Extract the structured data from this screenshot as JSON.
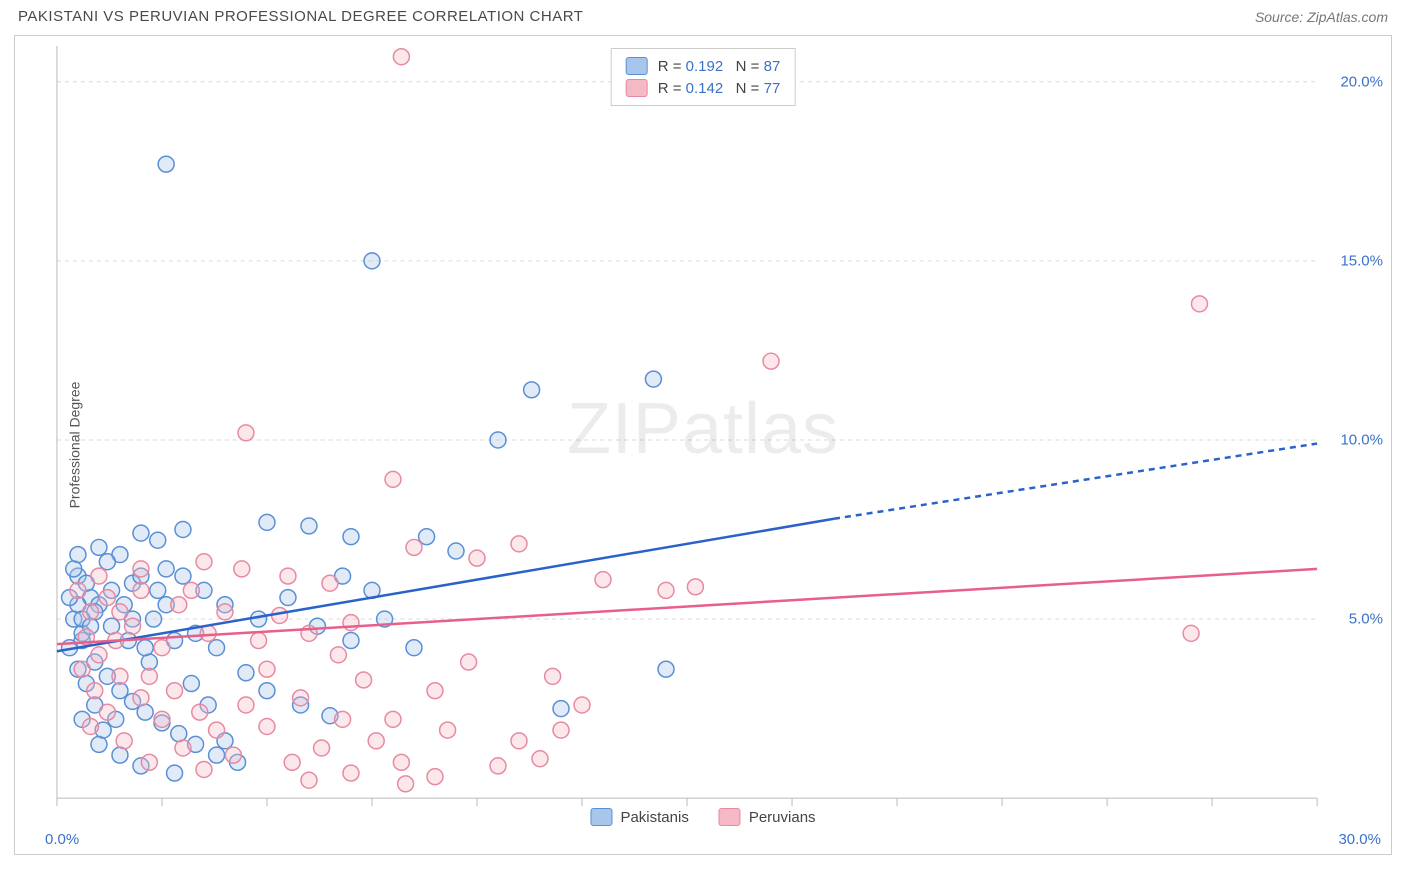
{
  "title": "PAKISTANI VS PERUVIAN PROFESSIONAL DEGREE CORRELATION CHART",
  "source": "Source: ZipAtlas.com",
  "ylabel": "Professional Degree",
  "watermark_a": "ZIP",
  "watermark_b": "atlas",
  "chart": {
    "type": "scatter",
    "background_color": "#ffffff",
    "border_color": "#cccccc",
    "grid_color": "#d9d9d9",
    "grid_dash": "4 4",
    "xlim": [
      0,
      30
    ],
    "ylim": [
      0,
      21
    ],
    "xtick_minor_step": 2.5,
    "ytick_values": [
      5,
      10,
      15,
      20
    ],
    "ytick_labels": [
      "5.0%",
      "10.0%",
      "15.0%",
      "20.0%"
    ],
    "x_origin_label": "0.0%",
    "x_max_label": "30.0%",
    "marker_radius": 8,
    "marker_stroke_width": 1.5,
    "marker_fill_opacity": 0.35,
    "trend_line_width": 2.5
  },
  "series": [
    {
      "name": "Pakistanis",
      "color_fill": "#a8c6ec",
      "color_stroke": "#5a8fd6",
      "line_color": "#2a62c9",
      "R": "0.192",
      "N": "87",
      "trend": {
        "x1": 0,
        "y1": 4.1,
        "x2": 18.5,
        "y2": 7.8,
        "x2_dash": 30,
        "y2_dash": 9.9
      },
      "points": [
        [
          2.6,
          17.7
        ],
        [
          7.5,
          15.0
        ],
        [
          11.3,
          11.4
        ],
        [
          14.2,
          11.7
        ],
        [
          10.5,
          10.0
        ],
        [
          5.0,
          7.7
        ],
        [
          6.0,
          7.6
        ],
        [
          7.0,
          7.3
        ],
        [
          8.8,
          7.3
        ],
        [
          9.5,
          6.9
        ],
        [
          3.0,
          7.5
        ],
        [
          2.0,
          7.4
        ],
        [
          1.5,
          6.8
        ],
        [
          1.8,
          6.0
        ],
        [
          0.5,
          6.2
        ],
        [
          0.8,
          5.6
        ],
        [
          1.0,
          5.4
        ],
        [
          1.3,
          5.8
        ],
        [
          2.3,
          5.0
        ],
        [
          2.6,
          5.4
        ],
        [
          3.3,
          4.6
        ],
        [
          3.8,
          4.2
        ],
        [
          4.5,
          3.5
        ],
        [
          5.0,
          3.0
        ],
        [
          5.8,
          2.6
        ],
        [
          6.5,
          2.3
        ],
        [
          0.6,
          4.4
        ],
        [
          0.9,
          3.8
        ],
        [
          1.2,
          3.4
        ],
        [
          1.5,
          3.0
        ],
        [
          1.8,
          2.7
        ],
        [
          2.1,
          2.4
        ],
        [
          2.5,
          2.1
        ],
        [
          2.9,
          1.8
        ],
        [
          3.3,
          1.5
        ],
        [
          3.8,
          1.2
        ],
        [
          4.3,
          1.0
        ],
        [
          1.0,
          1.5
        ],
        [
          1.5,
          1.2
        ],
        [
          2.0,
          0.9
        ],
        [
          2.8,
          0.7
        ],
        [
          0.4,
          5.0
        ],
        [
          0.6,
          4.6
        ],
        [
          0.3,
          4.2
        ],
        [
          0.5,
          3.6
        ],
        [
          0.4,
          6.4
        ],
        [
          0.7,
          6.0
        ],
        [
          0.9,
          5.2
        ],
        [
          12.0,
          2.5
        ],
        [
          14.5,
          3.6
        ],
        [
          7.0,
          4.4
        ],
        [
          6.2,
          4.8
        ],
        [
          7.8,
          5.0
        ],
        [
          8.5,
          4.2
        ],
        [
          1.2,
          6.6
        ],
        [
          2.4,
          7.2
        ],
        [
          1.0,
          7.0
        ],
        [
          0.5,
          5.4
        ],
        [
          0.6,
          5.0
        ],
        [
          3.5,
          5.8
        ],
        [
          0.8,
          4.8
        ],
        [
          0.3,
          5.6
        ],
        [
          1.7,
          4.4
        ],
        [
          2.2,
          3.8
        ],
        [
          1.4,
          2.2
        ],
        [
          0.9,
          2.6
        ],
        [
          0.6,
          2.2
        ],
        [
          1.3,
          4.8
        ],
        [
          2.1,
          4.2
        ],
        [
          4.0,
          5.4
        ],
        [
          4.8,
          5.0
        ],
        [
          4.0,
          1.6
        ],
        [
          3.2,
          3.2
        ],
        [
          3.6,
          2.6
        ],
        [
          2.8,
          4.4
        ],
        [
          5.5,
          5.6
        ],
        [
          6.8,
          6.2
        ],
        [
          7.5,
          5.8
        ],
        [
          1.1,
          1.9
        ],
        [
          3.0,
          6.2
        ],
        [
          2.6,
          6.4
        ],
        [
          0.5,
          6.8
        ],
        [
          2.0,
          6.2
        ],
        [
          1.6,
          5.4
        ],
        [
          2.4,
          5.8
        ],
        [
          1.8,
          5.0
        ],
        [
          0.7,
          3.2
        ]
      ]
    },
    {
      "name": "Peruvians",
      "color_fill": "#f5b9c6",
      "color_stroke": "#e78aa1",
      "line_color": "#e85f8a",
      "R": "0.142",
      "N": "77",
      "trend": {
        "x1": 0,
        "y1": 4.3,
        "x2": 30,
        "y2": 6.4,
        "x2_dash": 30,
        "y2_dash": 6.4
      },
      "points": [
        [
          8.2,
          20.7
        ],
        [
          17.0,
          12.2
        ],
        [
          27.2,
          13.8
        ],
        [
          27.0,
          4.6
        ],
        [
          4.5,
          10.2
        ],
        [
          8.0,
          8.9
        ],
        [
          11.0,
          7.1
        ],
        [
          8.5,
          7.0
        ],
        [
          10.0,
          6.7
        ],
        [
          5.5,
          6.2
        ],
        [
          3.5,
          6.6
        ],
        [
          2.0,
          5.8
        ],
        [
          1.2,
          5.6
        ],
        [
          0.8,
          5.2
        ],
        [
          14.5,
          5.8
        ],
        [
          15.2,
          5.9
        ],
        [
          11.8,
          3.4
        ],
        [
          12.5,
          2.6
        ],
        [
          11.0,
          1.6
        ],
        [
          10.5,
          0.9
        ],
        [
          9.0,
          0.6
        ],
        [
          8.3,
          0.4
        ],
        [
          9.3,
          1.9
        ],
        [
          8.0,
          2.2
        ],
        [
          7.3,
          3.3
        ],
        [
          6.7,
          4.0
        ],
        [
          6.0,
          4.6
        ],
        [
          5.3,
          5.1
        ],
        [
          5.0,
          3.6
        ],
        [
          4.5,
          2.6
        ],
        [
          3.8,
          1.9
        ],
        [
          4.2,
          1.2
        ],
        [
          3.5,
          0.8
        ],
        [
          3.0,
          1.4
        ],
        [
          2.5,
          2.2
        ],
        [
          2.0,
          2.8
        ],
        [
          1.5,
          3.4
        ],
        [
          1.0,
          4.0
        ],
        [
          0.7,
          4.5
        ],
        [
          7.0,
          4.9
        ],
        [
          6.3,
          1.4
        ],
        [
          5.6,
          1.0
        ],
        [
          11.5,
          1.1
        ],
        [
          12.0,
          1.9
        ],
        [
          6.5,
          6.0
        ],
        [
          4.8,
          4.4
        ],
        [
          4.0,
          5.2
        ],
        [
          3.2,
          5.8
        ],
        [
          2.5,
          4.2
        ],
        [
          1.8,
          4.8
        ],
        [
          1.2,
          2.4
        ],
        [
          0.9,
          3.0
        ],
        [
          0.6,
          3.6
        ],
        [
          2.2,
          3.4
        ],
        [
          2.8,
          3.0
        ],
        [
          3.4,
          2.4
        ],
        [
          5.0,
          2.0
        ],
        [
          5.8,
          2.8
        ],
        [
          6.8,
          2.2
        ],
        [
          7.6,
          1.6
        ],
        [
          8.2,
          1.0
        ],
        [
          9.0,
          3.0
        ],
        [
          9.8,
          3.8
        ],
        [
          2.9,
          5.4
        ],
        [
          3.6,
          4.6
        ],
        [
          1.4,
          4.4
        ],
        [
          0.8,
          2.0
        ],
        [
          1.6,
          1.6
        ],
        [
          2.2,
          1.0
        ],
        [
          13.0,
          6.1
        ],
        [
          6.0,
          0.5
        ],
        [
          7.0,
          0.7
        ],
        [
          4.4,
          6.4
        ],
        [
          2.0,
          6.4
        ],
        [
          1.0,
          6.2
        ],
        [
          0.5,
          5.8
        ],
        [
          1.5,
          5.2
        ]
      ]
    }
  ],
  "legend_top_label": {
    "R": "R =",
    "N": "N ="
  },
  "legend_bottom": [
    "Pakistanis",
    "Peruvians"
  ]
}
